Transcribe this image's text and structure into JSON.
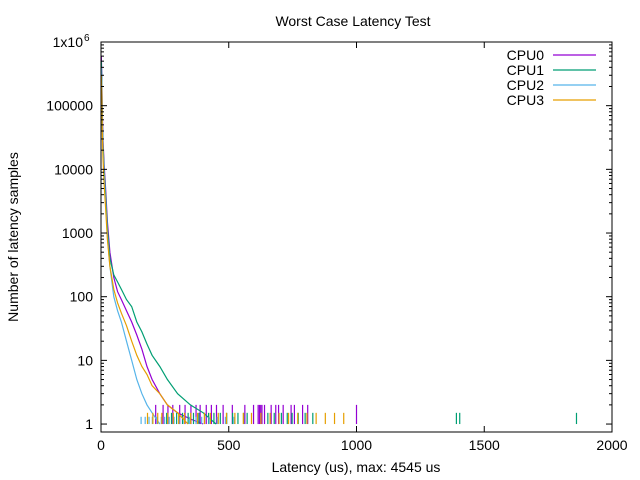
{
  "chart_data": {
    "type": "line",
    "title": "Worst Case Latency Test",
    "xlabel": "Latency (us), max: 4545 us",
    "ylabel": "Number of latency samples",
    "xlim": [
      0,
      2000
    ],
    "ylim": [
      0.75,
      1000000
    ],
    "yscale": "log",
    "grid": false,
    "legend_position": "top-right",
    "x_ticks": [
      0,
      500,
      1000,
      1500,
      2000
    ],
    "x_tick_labels": [
      "0",
      "500",
      "1000",
      "1500",
      "2000"
    ],
    "y_ticks": [
      1,
      10,
      100,
      1000,
      10000,
      100000,
      1000000
    ],
    "y_tick_labels": [
      "1",
      "10",
      "100",
      "1000",
      "10000",
      "100000",
      "1x10"
    ],
    "y_top_tick_exponent": "6",
    "series": [
      {
        "name": "CPU0",
        "color": "#9400d3",
        "points": [
          [
            1,
            600000
          ],
          [
            3,
            300000
          ],
          [
            5,
            80000
          ],
          [
            8,
            30000
          ],
          [
            12,
            12000
          ],
          [
            18,
            5000
          ],
          [
            25,
            1500
          ],
          [
            35,
            500
          ],
          [
            50,
            200
          ],
          [
            65,
            120
          ],
          [
            80,
            90
          ],
          [
            100,
            60
          ],
          [
            120,
            40
          ],
          [
            140,
            25
          ],
          [
            160,
            15
          ],
          [
            180,
            8
          ],
          [
            200,
            5
          ],
          [
            230,
            3
          ],
          [
            260,
            2
          ],
          [
            300,
            1.5
          ],
          [
            350,
            1.2
          ],
          [
            400,
            1
          ]
        ],
        "spikes": [
          5,
          [
            2,
            [
              214,
              243,
              262,
              281,
              308,
              329,
              352,
              372,
              388,
              412,
              432,
              452,
              478,
              514,
              563,
              597,
              615,
              620,
              625,
              630,
              640,
              666,
              684,
              695,
              713,
              744,
              757,
              789,
              809,
              1000
            ]
          ]
        ]
      },
      {
        "name": "CPU1",
        "color": "#009e73",
        "points": [
          [
            1,
            500000
          ],
          [
            3,
            250000
          ],
          [
            5,
            60000
          ],
          [
            8,
            25000
          ],
          [
            12,
            10000
          ],
          [
            18,
            4000
          ],
          [
            25,
            1200
          ],
          [
            35,
            400
          ],
          [
            50,
            220
          ],
          [
            65,
            170
          ],
          [
            80,
            130
          ],
          [
            100,
            90
          ],
          [
            120,
            70
          ],
          [
            140,
            40
          ],
          [
            160,
            28
          ],
          [
            180,
            18
          ],
          [
            200,
            12
          ],
          [
            230,
            8
          ],
          [
            260,
            5
          ],
          [
            300,
            3
          ],
          [
            350,
            2
          ],
          [
            400,
            1.5
          ],
          [
            450,
            1
          ]
        ],
        "spikes": [
          3,
          [
            1.5,
            [
              257,
              276,
              296,
              319,
              341,
              362,
              383,
              405,
              421,
              442,
              467,
              492,
              515,
              536,
              558,
              572,
              653,
              678,
              706,
              729,
              748,
              772,
              799,
              829,
              1391,
              1404,
              1861
            ]
          ]
        ]
      },
      {
        "name": "CPU2",
        "color": "#56b4e9",
        "points": [
          [
            1,
            400000
          ],
          [
            3,
            200000
          ],
          [
            5,
            50000
          ],
          [
            8,
            20000
          ],
          [
            12,
            8000
          ],
          [
            18,
            3000
          ],
          [
            25,
            900
          ],
          [
            35,
            300
          ],
          [
            50,
            100
          ],
          [
            65,
            60
          ],
          [
            80,
            40
          ],
          [
            100,
            20
          ],
          [
            120,
            10
          ],
          [
            140,
            5
          ],
          [
            160,
            3
          ],
          [
            180,
            2
          ],
          [
            200,
            1.5
          ],
          [
            230,
            1
          ]
        ],
        "spikes": [
          2,
          [
            1.3,
            [
              157,
              173,
              188,
              201,
              219,
              236,
              249,
              267,
              286,
              306,
              325,
              347,
              372,
              394,
              423,
              455,
              487,
              520
            ]
          ]
        ]
      },
      {
        "name": "CPU3",
        "color": "#e69f00",
        "points": [
          [
            1,
            300000
          ],
          [
            3,
            150000
          ],
          [
            5,
            40000
          ],
          [
            8,
            15000
          ],
          [
            12,
            6000
          ],
          [
            18,
            2500
          ],
          [
            25,
            800
          ],
          [
            35,
            300
          ],
          [
            50,
            130
          ],
          [
            65,
            80
          ],
          [
            80,
            55
          ],
          [
            100,
            35
          ],
          [
            120,
            20
          ],
          [
            140,
            12
          ],
          [
            160,
            8
          ],
          [
            180,
            6
          ],
          [
            200,
            4
          ],
          [
            230,
            3
          ],
          [
            260,
            2
          ],
          [
            300,
            1.5
          ],
          [
            340,
            1
          ]
        ],
        "spikes": [
          2.5,
          [
            1.5,
            [
              182,
              203,
              222,
              238,
              261,
              283,
              304,
              327,
              351,
              378,
              405,
              428,
              459,
              491,
              524,
              557,
              589,
              626,
              662,
              697,
              734,
              770,
              806,
              842,
              878,
              914,
              950
            ]
          ]
        ]
      }
    ]
  }
}
